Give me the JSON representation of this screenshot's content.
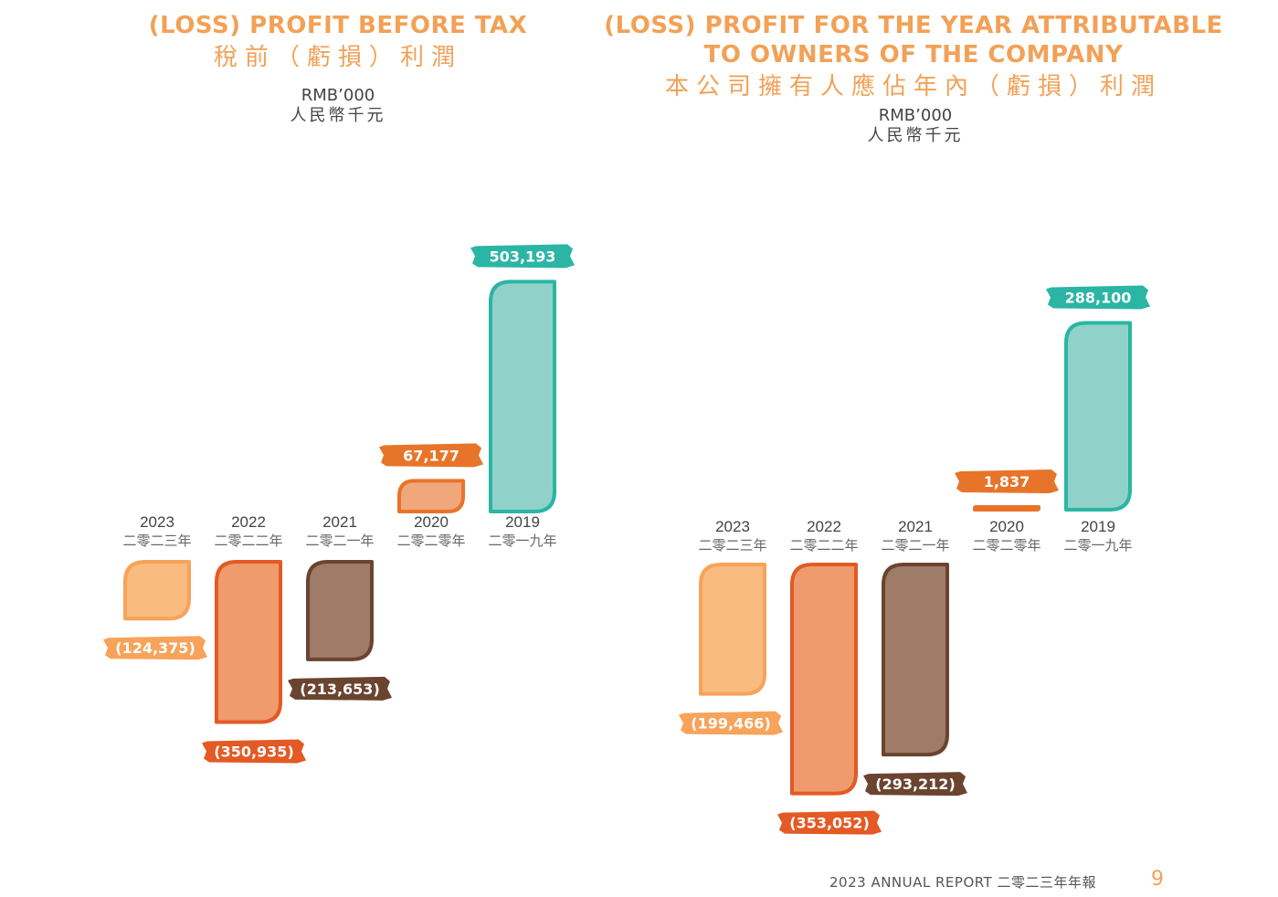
{
  "colors": {
    "title": "#f2a157",
    "text": "#444444"
  },
  "footer": {
    "report": "2023 ANNUAL REPORT 二零二三年年報",
    "page": "9"
  },
  "chart_data": [
    {
      "type": "bar",
      "title": "(LOSS) PROFIT BEFORE TAX",
      "title_zh": "稅前（虧損）利潤",
      "unit": "RMB’000",
      "unit_zh": "人民幣千元",
      "categories": [
        "2023",
        "2022",
        "2021",
        "2020",
        "2019"
      ],
      "categories_zh": [
        "二零二三年",
        "二零二二年",
        "二零二一年",
        "二零二零年",
        "二零一九年"
      ],
      "values": [
        -124375,
        -350935,
        -213653,
        67177,
        503193
      ],
      "value_labels": [
        "(124,375)",
        "(350,935)",
        "(213,653)",
        "67,177",
        "503,193"
      ],
      "grid": false
    },
    {
      "type": "bar",
      "title": "(LOSS) PROFIT FOR THE YEAR ATTRIBUTABLE TO OWNERS OF THE COMPANY",
      "title_line1": "(LOSS) PROFIT FOR THE YEAR ATTRIBUTABLE",
      "title_line2": "TO OWNERS OF THE COMPANY",
      "title_zh": "本公司擁有人應佔年內（虧損）利潤",
      "unit": "RMB’000",
      "unit_zh": "人民幣千元",
      "categories": [
        "2023",
        "2022",
        "2021",
        "2020",
        "2019"
      ],
      "categories_zh": [
        "二零二三年",
        "二零二二年",
        "二零二一年",
        "二零二零年",
        "二零一九年"
      ],
      "values": [
        -199466,
        -353052,
        -293212,
        1837,
        288100
      ],
      "value_labels": [
        "(199,466)",
        "(353,052)",
        "(293,212)",
        "1,837",
        "288,100"
      ],
      "grid": false
    }
  ],
  "bar_colors": [
    {
      "fill": "#f9bb80",
      "stroke": "#f7a35a",
      "label": "#f7a35a"
    },
    {
      "fill": "#ef9b6e",
      "stroke": "#e35a24",
      "label": "#e35a24"
    },
    {
      "fill": "#9e7c67",
      "stroke": "#6b4430",
      "label": "#6b4430"
    },
    {
      "fill": "#f1a77c",
      "stroke": "#e8742a",
      "label": "#e8742a"
    },
    {
      "fill": "#90d2c9",
      "stroke": "#2bb5a5",
      "label": "#2bb5a5"
    }
  ]
}
